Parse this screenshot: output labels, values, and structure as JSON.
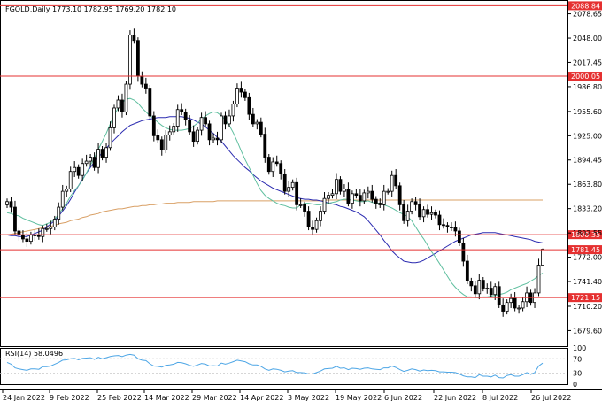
{
  "header": {
    "symbol_label": "FGOLD,Daily  1773.10 1782.95 1769.20 1782.10"
  },
  "rsi_panel": {
    "label": "RSI(14) 58.0496",
    "levels": [
      100,
      70,
      30,
      0
    ]
  },
  "colors": {
    "bull_body": "#ffffff",
    "bear_body": "#000000",
    "candle_outline": "#000000",
    "ma_fast": "#5fbf9f",
    "ma_mid": "#2b2bb0",
    "ma_slow": "#d9a066",
    "level_line": "#e53030",
    "rsi_line": "#4da6e6",
    "grid": "#e6e6e6"
  },
  "chart_data": {
    "type": "candlestick",
    "instrument": "FGOLD",
    "timeframe": "Daily",
    "last_bar": {
      "open": 1773.1,
      "high": 1782.95,
      "low": 1769.2,
      "close": 1782.1
    },
    "x_ticks": [
      "24 Jan 2022",
      "9 Feb 2022",
      "25 Feb 2022",
      "14 Mar 2022",
      "29 Mar 2022",
      "14 Apr 2022",
      "3 May 2022",
      "19 May 2022",
      "6 Jun 2022",
      "22 Jun 2022",
      "8 Jul 2022",
      "26 Jul 2022"
    ],
    "y_ticks": [
      2078.65,
      2048.0,
      2017.45,
      1986.8,
      1955.6,
      1925.0,
      1894.45,
      1863.8,
      1833.2,
      1802.55,
      1772.0,
      1741.4,
      1710.2,
      1679.6
    ],
    "ylim": [
      1660,
      2096
    ],
    "levels": [
      {
        "value": 2088.84,
        "label": "2088.84"
      },
      {
        "value": 2000.05,
        "label": "2000.05"
      },
      {
        "value": 1800.35,
        "label": "1800.35"
      },
      {
        "value": 1781.45,
        "label": "1781.45"
      },
      {
        "value": 1721.15,
        "label": "1721.15"
      }
    ],
    "closes": [
      1842,
      1835,
      1805,
      1800,
      1795,
      1792,
      1800,
      1800,
      1798,
      1808,
      1808,
      1810,
      1820,
      1835,
      1855,
      1858,
      1880,
      1885,
      1875,
      1890,
      1893,
      1898,
      1885,
      1908,
      1898,
      1910,
      1935,
      1960,
      1970,
      1955,
      1990,
      2052,
      2045,
      2000,
      1990,
      1985,
      1950,
      1925,
      1920,
      1907,
      1926,
      1930,
      1937,
      1958,
      1955,
      1945,
      1930,
      1918,
      1932,
      1948,
      1940,
      1920,
      1922,
      1920,
      1950,
      1940,
      1950,
      1965,
      1985,
      1980,
      1973,
      1952,
      1940,
      1942,
      1927,
      1898,
      1880,
      1892,
      1890,
      1877,
      1855,
      1860,
      1866,
      1838,
      1838,
      1830,
      1810,
      1807,
      1818,
      1830,
      1846,
      1850,
      1852,
      1870,
      1855,
      1858,
      1840,
      1852,
      1850,
      1843,
      1853,
      1855,
      1845,
      1840,
      1838,
      1855,
      1855,
      1875,
      1862,
      1838,
      1818,
      1830,
      1842,
      1838,
      1823,
      1832,
      1826,
      1828,
      1825,
      1813,
      1812,
      1810,
      1809,
      1805,
      1790,
      1767,
      1742,
      1736,
      1726,
      1743,
      1733,
      1733,
      1725,
      1735,
      1712,
      1704,
      1715,
      1720,
      1708,
      1708,
      1716,
      1727,
      1715,
      1727,
      1762,
      1782.1
    ],
    "ma_fast": {
      "period": 13,
      "values": [
        1828,
        1827,
        1825,
        1824,
        1821,
        1819,
        1817,
        1815,
        1813,
        1812,
        1814,
        1816,
        1820,
        1826,
        1833,
        1840,
        1849,
        1856,
        1862,
        1869,
        1878,
        1888,
        1897,
        1908,
        1918,
        1928,
        1940,
        1951,
        1960,
        1967,
        1971,
        1972,
        1970,
        1966,
        1960,
        1955,
        1950,
        1947,
        1942,
        1938,
        1935,
        1933,
        1932,
        1932,
        1932,
        1933,
        1934,
        1937,
        1941,
        1946,
        1950,
        1953,
        1955,
        1954,
        1950,
        1945,
        1938,
        1929,
        1918,
        1906,
        1895,
        1885,
        1875,
        1865,
        1856,
        1850,
        1846,
        1843,
        1840,
        1838,
        1837,
        1835,
        1834,
        1834,
        1838,
        1840,
        1840,
        1839,
        1838,
        1838,
        1840,
        1840,
        1841,
        1842,
        1844,
        1845,
        1845,
        1844,
        1843,
        1842,
        1842,
        1843,
        1841,
        1840,
        1840,
        1838,
        1836,
        1834,
        1831,
        1828,
        1826,
        1823,
        1818,
        1810,
        1802,
        1795,
        1787,
        1779,
        1772,
        1764,
        1756,
        1748,
        1740,
        1734,
        1729,
        1725,
        1722,
        1722,
        1721,
        1721,
        1722,
        1722,
        1723,
        1724,
        1725,
        1726,
        1728,
        1731,
        1733,
        1735,
        1737,
        1739,
        1742,
        1745,
        1749,
        1752
      ]
    },
    "ma_mid": {
      "period": 34,
      "values": [
        1800,
        1799,
        1799,
        1798,
        1798,
        1798,
        1800,
        1802,
        1804,
        1806,
        1810,
        1814,
        1818,
        1824,
        1830,
        1837,
        1845,
        1854,
        1862,
        1870,
        1878,
        1885,
        1892,
        1898,
        1904,
        1909,
        1915,
        1920,
        1925,
        1930,
        1934,
        1938,
        1940,
        1942,
        1944,
        1945,
        1946,
        1947,
        1948,
        1948,
        1948,
        1949,
        1949,
        1949,
        1949,
        1948,
        1947,
        1945,
        1942,
        1940,
        1936,
        1932,
        1928,
        1923,
        1918,
        1912,
        1906,
        1900,
        1895,
        1890,
        1885,
        1881,
        1876,
        1872,
        1868,
        1865,
        1862,
        1859,
        1857,
        1855,
        1853,
        1851,
        1849,
        1847,
        1846,
        1845,
        1845,
        1844,
        1844,
        1843,
        1842,
        1840,
        1839,
        1838,
        1836,
        1835,
        1833,
        1831,
        1829,
        1826,
        1823,
        1818,
        1812,
        1806,
        1800,
        1793,
        1787,
        1780,
        1775,
        1771,
        1767,
        1766,
        1765,
        1765,
        1766,
        1768,
        1771,
        1774,
        1777,
        1780,
        1783,
        1786,
        1789,
        1792,
        1794,
        1796,
        1798,
        1800,
        1801,
        1802,
        1803,
        1803,
        1803,
        1803,
        1802,
        1801,
        1800,
        1799,
        1798,
        1797,
        1796,
        1795,
        1794,
        1792,
        1791,
        1790
      ]
    },
    "ma_slow": {
      "period": 200,
      "values": [
        1800,
        1801,
        1802,
        1803,
        1804,
        1805,
        1806,
        1807,
        1808,
        1809,
        1810,
        1811,
        1812,
        1814,
        1815,
        1816,
        1818,
        1819,
        1820,
        1822,
        1823,
        1825,
        1826,
        1827,
        1829,
        1830,
        1831,
        1832,
        1833,
        1833,
        1834,
        1835,
        1836,
        1836,
        1837,
        1837,
        1838,
        1838,
        1839,
        1839,
        1840,
        1840,
        1840,
        1841,
        1841,
        1841,
        1841,
        1842,
        1842,
        1842,
        1842,
        1842,
        1842,
        1843,
        1843,
        1843,
        1843,
        1843,
        1843,
        1843,
        1843,
        1843,
        1843,
        1843,
        1843,
        1843,
        1843,
        1843,
        1843,
        1843,
        1843,
        1843,
        1843,
        1843,
        1843,
        1843,
        1843,
        1843,
        1843,
        1843,
        1844,
        1844,
        1844,
        1844,
        1844,
        1844,
        1844,
        1844,
        1844,
        1844,
        1844,
        1844,
        1844,
        1844,
        1844,
        1844,
        1844,
        1844,
        1844,
        1844,
        1844,
        1844,
        1844,
        1844,
        1844,
        1844,
        1844,
        1844,
        1844,
        1844,
        1844,
        1844,
        1844,
        1844,
        1844,
        1844,
        1844,
        1844,
        1844,
        1844,
        1844,
        1844,
        1844,
        1844,
        1844,
        1844,
        1844,
        1844,
        1844,
        1844,
        1844,
        1844,
        1844,
        1844,
        1844,
        1844
      ]
    },
    "rsi_values": [
      60,
      55,
      45,
      42,
      40,
      38,
      42,
      42,
      41,
      48,
      48,
      50,
      55,
      60,
      66,
      67,
      70,
      71,
      67,
      71,
      72,
      73,
      68,
      74,
      70,
      73,
      76,
      78,
      79,
      76,
      80,
      82,
      80,
      70,
      66,
      65,
      56,
      50,
      49,
      47,
      52,
      53,
      55,
      60,
      59,
      56,
      52,
      49,
      53,
      57,
      55,
      50,
      51,
      50,
      58,
      55,
      58,
      62,
      66,
      64,
      62,
      56,
      53,
      53,
      49,
      42,
      38,
      42,
      41,
      38,
      34,
      36,
      37,
      32,
      32,
      31,
      28,
      28,
      32,
      36,
      42,
      43,
      44,
      49,
      44,
      45,
      40,
      44,
      43,
      41,
      44,
      45,
      42,
      41,
      40,
      45,
      45,
      50,
      46,
      40,
      35,
      38,
      42,
      40,
      36,
      39,
      37,
      38,
      37,
      34,
      34,
      33,
      33,
      32,
      28,
      23,
      20,
      20,
      18,
      26,
      22,
      22,
      20,
      25,
      18,
      17,
      24,
      26,
      22,
      22,
      26,
      32,
      27,
      32,
      50,
      58.05
    ]
  }
}
